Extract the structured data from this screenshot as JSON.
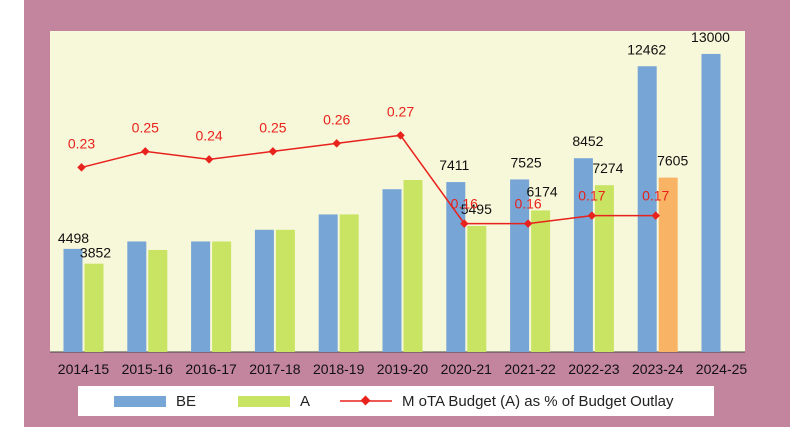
{
  "chart_data": {
    "type": "bar",
    "categories": [
      "2014-15",
      "2015-16",
      "2016-17",
      "2017-18",
      "2018-19",
      "2019-20",
      "2020-21",
      "2021-22",
      "2022-23",
      "2023-24",
      "2024-25"
    ],
    "ylim": [
      0,
      14000
    ],
    "y2lim": [
      0,
      0.4
    ],
    "series": [
      {
        "name": "BE",
        "color": "#77a5d6",
        "values": [
          4498,
          4820,
          4820,
          5330,
          6000,
          7100,
          7411,
          7525,
          8452,
          12462,
          13000
        ],
        "labels": [
          "4498",
          "",
          "",
          "",
          "",
          "",
          "7411",
          "7525",
          "8452",
          "12462",
          "13000"
        ]
      },
      {
        "name": "A",
        "color": "#c8e462",
        "highlight_color": "#f8b364",
        "values": [
          3852,
          4450,
          4820,
          5330,
          6000,
          7500,
          5495,
          6174,
          7274,
          7605,
          null
        ],
        "labels": [
          "3852",
          "",
          "",
          "",
          "",
          "",
          "5495",
          "6174",
          "7274",
          "7605",
          ""
        ]
      },
      {
        "name": "M oTA  Budget (A) as % of Budget Outlay",
        "type": "line",
        "color": "#e8221c",
        "values": [
          0.23,
          0.25,
          0.24,
          0.25,
          0.26,
          0.27,
          0.16,
          0.16,
          0.17,
          0.17,
          null
        ],
        "labels": [
          "0.23",
          "0.25",
          "0.24",
          "0.25",
          "0.26",
          "0.27",
          "0.16",
          "0.16",
          "0.17",
          "0.17",
          ""
        ]
      }
    ],
    "legend_position": "bottom",
    "grid": false
  }
}
